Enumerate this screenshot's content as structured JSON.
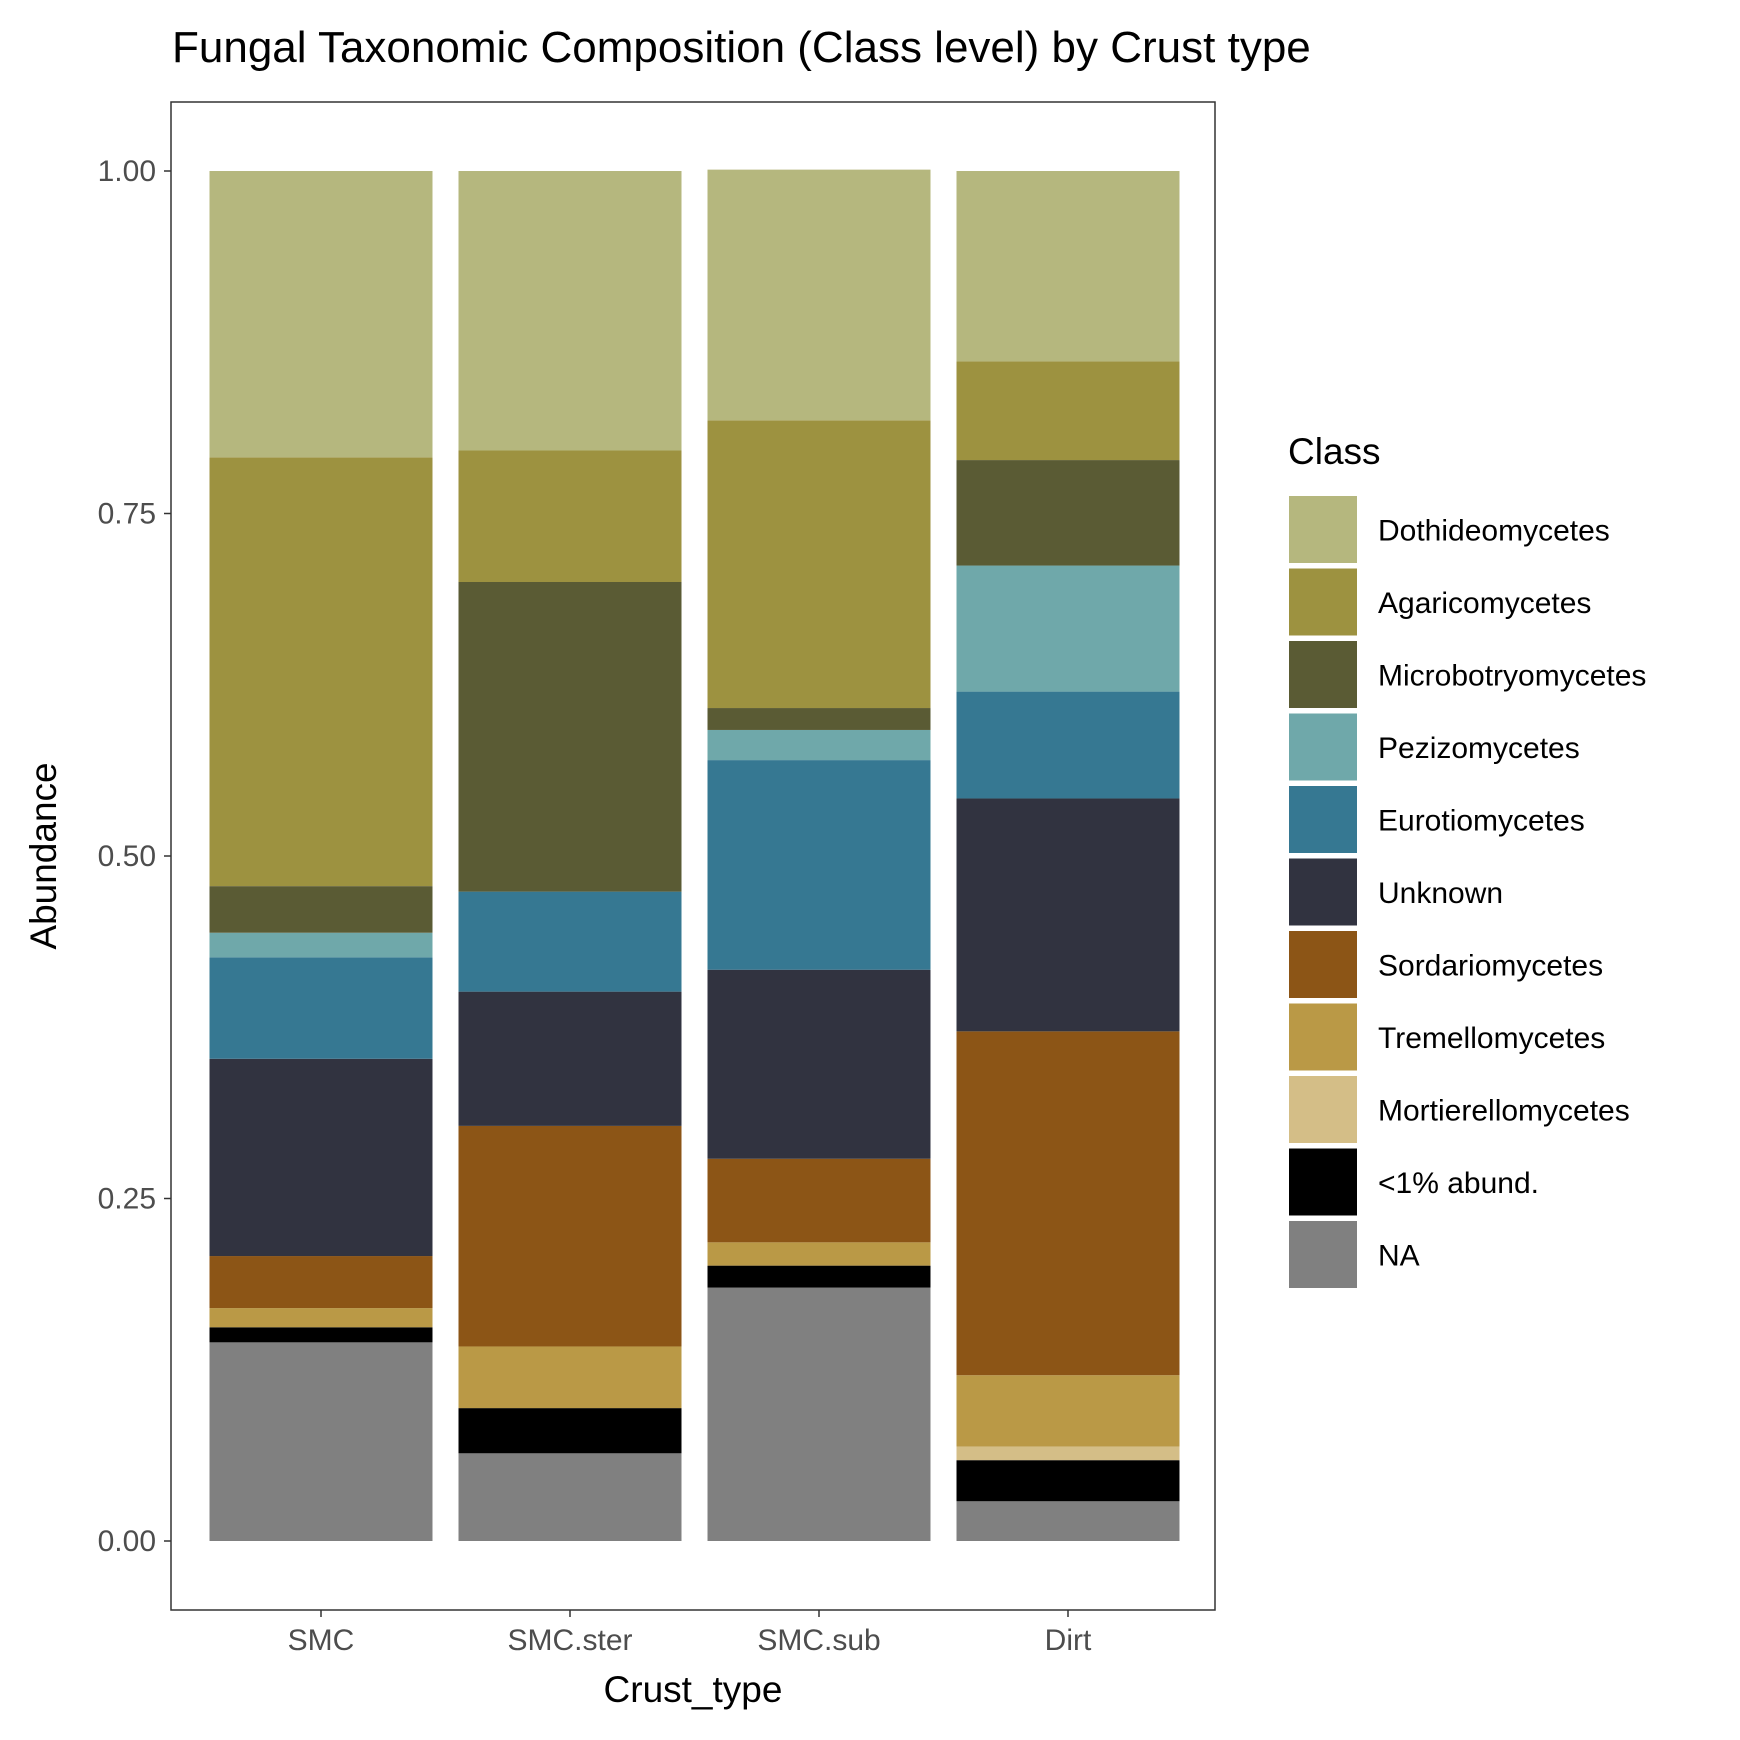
{
  "chart_data": {
    "type": "bar",
    "stacked": true,
    "title": "Fungal Taxonomic Composition (Class level) by Crust type",
    "xlabel": "Crust_type",
    "ylabel": "Abundance",
    "ylim": [
      0,
      1
    ],
    "yticks": [
      "0.00",
      "0.25",
      "0.50",
      "0.75",
      "1.00"
    ],
    "ytick_values": [
      0,
      0.25,
      0.5,
      0.75,
      1.0
    ],
    "grid": false,
    "legend_title": "Class",
    "legend_position": "right",
    "categories": [
      "SMC",
      "SMC.ster",
      "SMC.sub",
      "Dirt"
    ],
    "series": [
      {
        "name": "NA",
        "color": "#808080",
        "values": [
          0.145,
          0.064,
          0.185,
          0.029
        ]
      },
      {
        "name": "<1% abund.",
        "color": "#000000",
        "values": [
          0.011,
          0.033,
          0.016,
          0.03
        ]
      },
      {
        "name": "Mortierellomycetes",
        "color": "#D4BE87",
        "values": [
          0.0,
          0.0,
          0.0,
          0.01
        ]
      },
      {
        "name": "Tremellomycetes",
        "color": "#BA9946",
        "values": [
          0.014,
          0.045,
          0.017,
          0.052
        ]
      },
      {
        "name": "Sordariomycetes",
        "color": "#8C5516",
        "values": [
          0.038,
          0.161,
          0.061,
          0.251
        ]
      },
      {
        "name": "Unknown",
        "color": "#313340",
        "values": [
          0.144,
          0.098,
          0.138,
          0.17
        ]
      },
      {
        "name": "Eurotiomycetes",
        "color": "#367892",
        "values": [
          0.074,
          0.073,
          0.153,
          0.078
        ]
      },
      {
        "name": "Pezizomycetes",
        "color": "#6FA8AA",
        "values": [
          0.018,
          0.0,
          0.022,
          0.092
        ]
      },
      {
        "name": "Microbotryomycetes",
        "color": "#5A5B34",
        "values": [
          0.034,
          0.226,
          0.016,
          0.077
        ]
      },
      {
        "name": "Agaricomycetes",
        "color": "#9D9240",
        "values": [
          0.313,
          0.096,
          0.21,
          0.072
        ]
      },
      {
        "name": "Dothideomycetes",
        "color": "#B5B77E",
        "values": [
          0.209,
          0.204,
          0.183,
          0.139
        ]
      }
    ],
    "legend_order": [
      "Dothideomycetes",
      "Agaricomycetes",
      "Microbotryomycetes",
      "Pezizomycetes",
      "Eurotiomycetes",
      "Unknown",
      "Sordariomycetes",
      "Tremellomycetes",
      "Mortierellomycetes",
      "<1% abund.",
      "NA"
    ]
  }
}
